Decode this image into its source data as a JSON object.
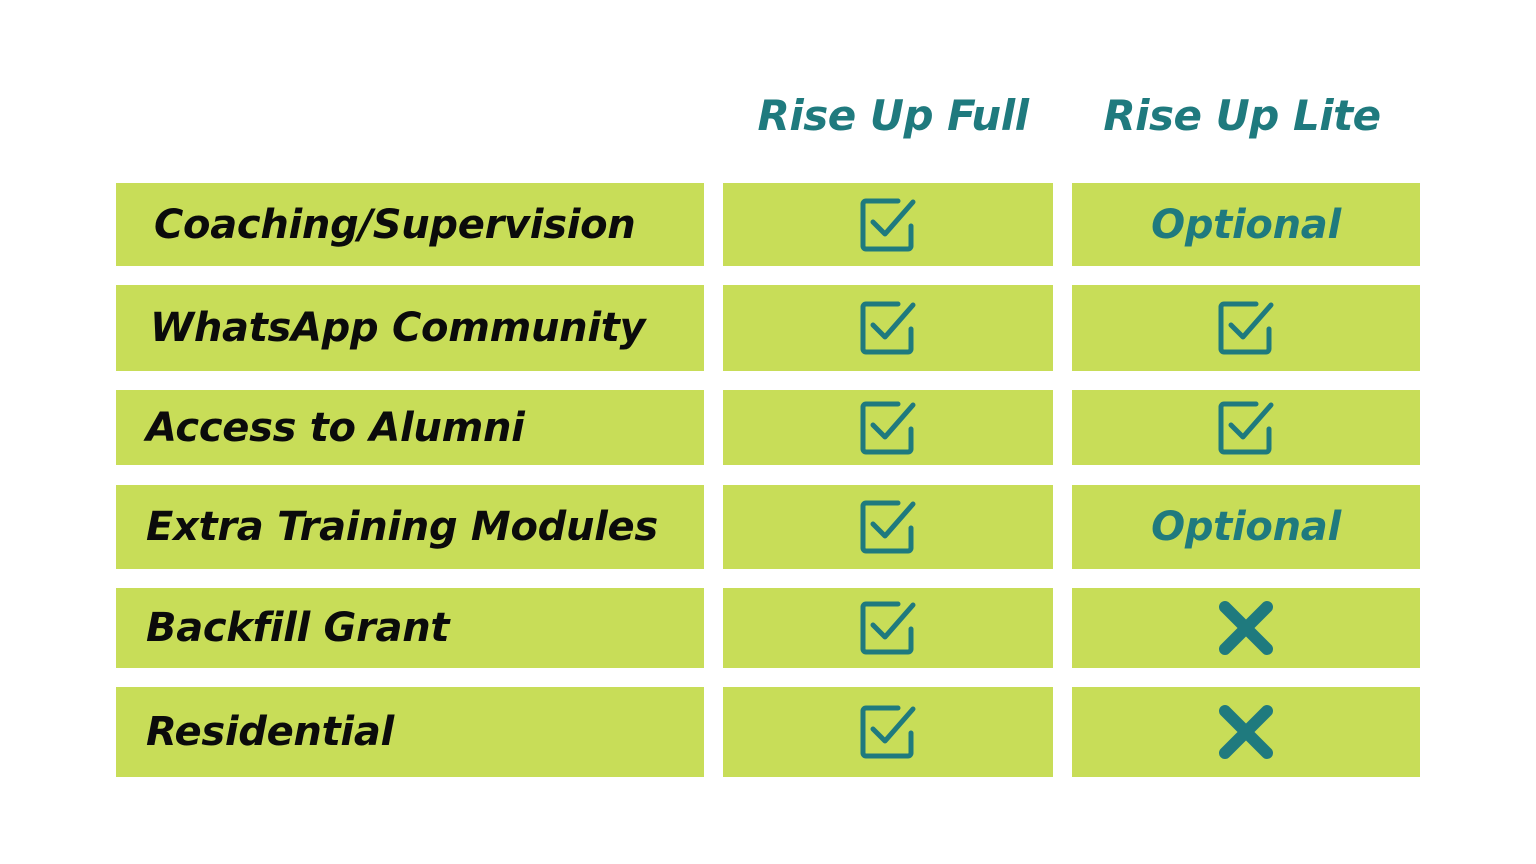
{
  "columns": {
    "full": "Rise Up Full",
    "lite": "Rise Up Lite"
  },
  "rows": [
    {
      "feature": "Coaching/Supervision",
      "full": "check",
      "lite": "Optional"
    },
    {
      "feature": "WhatsApp Community",
      "full": "check",
      "lite": "check"
    },
    {
      "feature": "Access to Alumni",
      "full": "check",
      "lite": "check"
    },
    {
      "feature": "Extra Training Modules",
      "full": "check",
      "lite": "Optional"
    },
    {
      "feature": "Backfill Grant",
      "full": "check",
      "lite": "cross"
    },
    {
      "feature": "Residential",
      "full": "check",
      "lite": "cross"
    }
  ],
  "icons": {
    "check": "checkbox-check-icon",
    "cross": "cross-icon"
  },
  "colors": {
    "cell_background": "#c8dd58",
    "accent": "#1f7a7e",
    "label_text": "#0b0b0b"
  }
}
